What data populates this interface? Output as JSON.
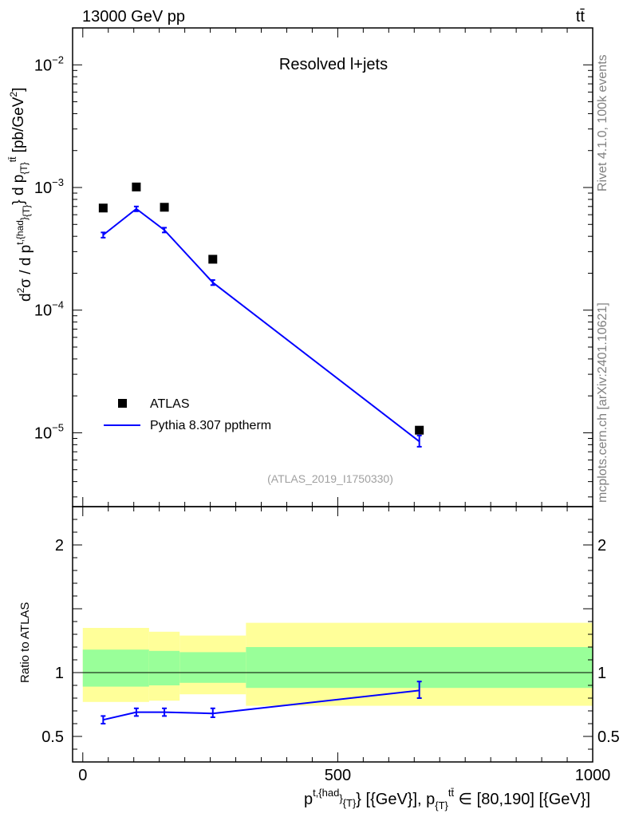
{
  "header": {
    "left": "13000 GeV pp",
    "right": "tt̄"
  },
  "side": {
    "rivet": "Rivet 4.1.0,  100k events",
    "mcplots": "mcplots.cern.ch [arXiv:2401.10621]"
  },
  "chart_data": [
    {
      "type": "line",
      "title": "Resolved l+jets",
      "analysis_tag": "(ATLAS_2019_I1750330)",
      "ylabel": "d²σ / d p^{t,{had}}_{T} d p_{T}^{tt̄} [pb/GeV²]",
      "yscale": "log",
      "ylim": [
        2.5e-06,
        0.02
      ],
      "xlim": [
        -20,
        1000
      ],
      "y_ticks": [
        {
          "value": 0.01,
          "mantissa": "10",
          "exp": "−2"
        },
        {
          "value": 0.001,
          "mantissa": "10",
          "exp": "−3"
        },
        {
          "value": 0.0001,
          "mantissa": "10",
          "exp": "−4"
        },
        {
          "value": 1e-05,
          "mantissa": "10",
          "exp": "−5"
        }
      ],
      "series": [
        {
          "name": "ATLAS",
          "style": "markers",
          "color": "#000000",
          "x": [
            40,
            105,
            160,
            255,
            660
          ],
          "y": [
            0.00068,
            0.00101,
            0.00069,
            0.00026,
            1.05e-05
          ]
        },
        {
          "name": "Pythia 8.307 pptherm",
          "style": "line",
          "color": "#0000ff",
          "x": [
            40,
            105,
            160,
            255,
            660
          ],
          "y": [
            0.00041,
            0.00067,
            0.00045,
            0.000168,
            8.5e-06
          ],
          "err_low": [
            0.00039,
            0.00064,
            0.00043,
            0.00016,
            7.7e-06
          ],
          "err_high": [
            0.00043,
            0.0007,
            0.00047,
            0.000176,
            9.5e-06
          ]
        }
      ]
    },
    {
      "type": "line",
      "ylabel": "Ratio to ATLAS",
      "ylim": [
        0.3,
        2.3
      ],
      "xlim": [
        -20,
        1000
      ],
      "y_ticks": [
        "0.5",
        "1",
        "2"
      ],
      "x_ticks": [
        "0",
        "500",
        "1000"
      ],
      "xlabel_parts": {
        "p": "p",
        "sup1": "t,{had",
        "close": "}",
        "sub1": "{T}",
        "mid": "} [{GeV}], p",
        "sub2": "{T}",
        "sup2": "tt̄",
        "tail": " ∈ [80,190] [{GeV}]"
      },
      "bands": {
        "bins": [
          [
            0,
            130
          ],
          [
            130,
            190
          ],
          [
            190,
            320
          ],
          [
            320,
            1000
          ]
        ],
        "inner_low": [
          0.89,
          0.9,
          0.92,
          0.88
        ],
        "inner_high": [
          1.18,
          1.17,
          1.16,
          1.2
        ],
        "outer_low": [
          0.77,
          0.78,
          0.83,
          0.74
        ],
        "outer_high": [
          1.35,
          1.32,
          1.29,
          1.39
        ],
        "inner_color": "#99ff99",
        "outer_color": "#ffff99"
      },
      "reference_line": 1,
      "series": [
        {
          "name": "Pythia 8.307 pptherm / ATLAS",
          "color": "#0000ff",
          "x": [
            40,
            105,
            160,
            255,
            660
          ],
          "y": [
            0.63,
            0.69,
            0.69,
            0.68,
            0.86
          ],
          "err_low": [
            0.6,
            0.66,
            0.66,
            0.65,
            0.8
          ],
          "err_high": [
            0.66,
            0.72,
            0.72,
            0.72,
            0.93
          ]
        }
      ]
    }
  ]
}
